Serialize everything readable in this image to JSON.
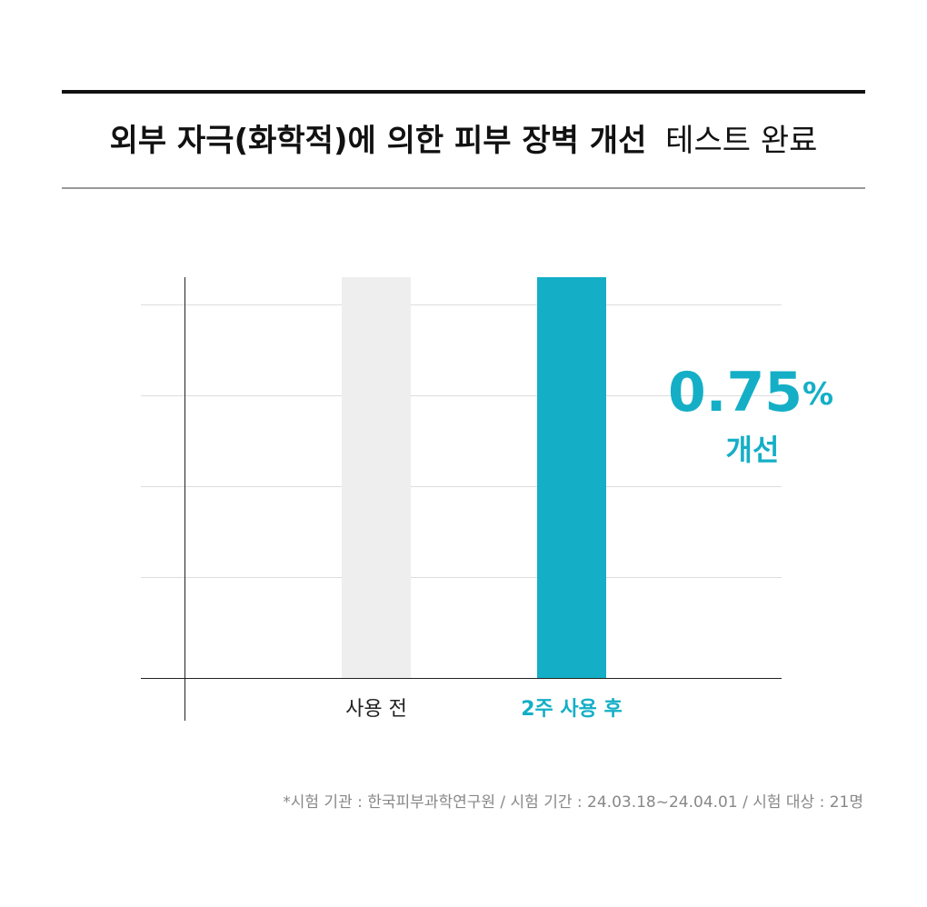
{
  "chart_data": {
    "type": "bar",
    "title_parts": [
      "외부 자극(화학적)에 의한 피부 장벽 개선",
      "테스트 완료"
    ],
    "categories": [
      "사용 전",
      "2주 사용 후"
    ],
    "values": [
      100,
      100
    ],
    "colors": [
      "#eeeeee",
      "#14afc6"
    ],
    "label_colors": [
      "#222222",
      "#14afc6"
    ],
    "ylim": [
      0,
      100
    ],
    "annotation": {
      "number": "0.75",
      "unit": "%",
      "text": "개선",
      "color": "#14afc6"
    },
    "footnote": "*시험 기관 : 한국피부과학연구원 / 시험 기간 : 24.03.18~24.04.01 / 시험 대상 : 21명"
  }
}
